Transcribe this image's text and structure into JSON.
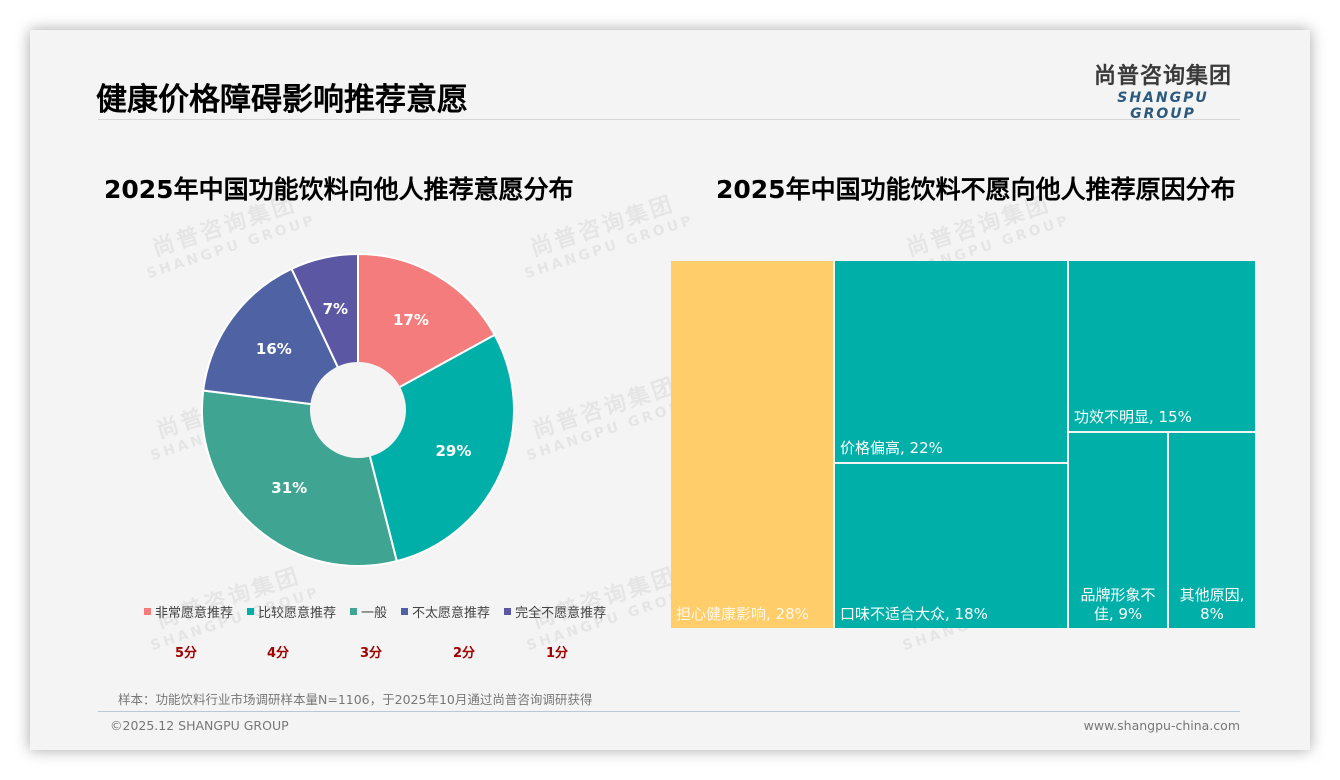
{
  "header": {
    "title": "健康价格障碍影响推荐意愿",
    "logo_cn": "尚普咨询集团",
    "logo_en": "SHANGPU GROUP"
  },
  "watermark": {
    "cn": "尚普咨询集团",
    "en": "SHANGPU GROUP"
  },
  "left_chart": {
    "title": "2025年中国功能饮料向他人推荐意愿分布",
    "legend": [
      {
        "label": "非常愿意推荐",
        "color": "#f47c7c",
        "score": "5分"
      },
      {
        "label": "比较愿意推荐",
        "color": "#00b0a8",
        "score": "4分"
      },
      {
        "label": "一般",
        "color": "#3fa491",
        "score": "3分"
      },
      {
        "label": "不太愿意推荐",
        "color": "#4f63a4",
        "score": "2分"
      },
      {
        "label": "完全不愿意推荐",
        "color": "#5b57a2",
        "score": "1分"
      }
    ]
  },
  "right_chart": {
    "title": "2025年中国功能饮料不愿向他人推荐原因分布"
  },
  "chart_data": [
    {
      "type": "pie",
      "subtype": "donut",
      "title": "2025年中国功能饮料向他人推荐意愿分布",
      "categories": [
        "非常愿意推荐",
        "比较愿意推荐",
        "一般",
        "不太愿意推荐",
        "完全不愿意推荐"
      ],
      "values": [
        17,
        29,
        31,
        16,
        7
      ],
      "labels": [
        "17%",
        "29%",
        "31%",
        "16%",
        "7%"
      ],
      "colors": [
        "#f47c7c",
        "#00b0a8",
        "#3fa491",
        "#4f63a4",
        "#5b57a2"
      ],
      "scores": [
        "5分",
        "4分",
        "3分",
        "2分",
        "1分"
      ],
      "legend_position": "bottom"
    },
    {
      "type": "treemap",
      "title": "2025年中国功能饮料不愿向他人推荐原因分布",
      "categories": [
        "担心健康影响",
        "价格偏高",
        "口味不适合大众",
        "功效不明显",
        "品牌形象不佳",
        "其他原因"
      ],
      "values": [
        28,
        22,
        18,
        15,
        9,
        8
      ],
      "labels": [
        "担心健康影响, 28%",
        "价格偏高, 22%",
        "口味不适合大众, 18%",
        "功效不明显, 15%",
        "品牌形象不佳, 9%",
        "其他原因, 8%"
      ],
      "colors": [
        "#ffcd69",
        "#00b0a8",
        "#00b0a8",
        "#00b0a8",
        "#00b0a8",
        "#00b0a8"
      ]
    }
  ],
  "footer": {
    "note": "样本：功能饮料行业市场调研样本量N=1106，于2025年10月通过尚普咨询调研获得",
    "copyright": "©2025.12 SHANGPU GROUP",
    "website": "www.shangpu-china.com"
  }
}
